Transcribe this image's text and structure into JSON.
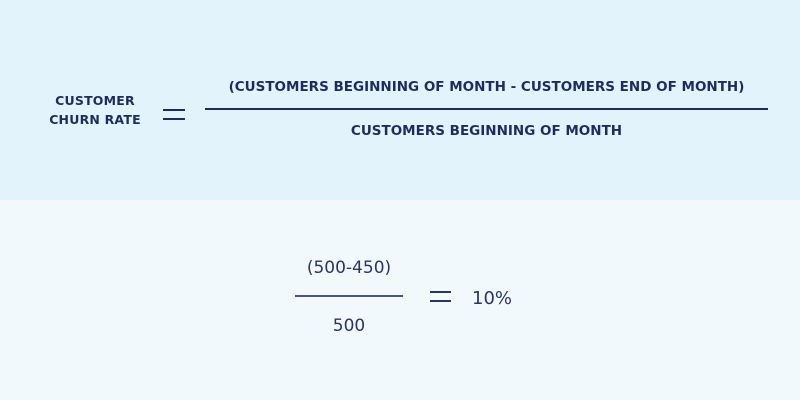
{
  "formula": {
    "label_line1": "CUSTOMER",
    "label_line2": "CHURN RATE",
    "numerator": "(CUSTOMERS BEGINNING OF MONTH - CUSTOMERS END OF MONTH)",
    "denominator": "CUSTOMERS BEGINNING OF MONTH"
  },
  "example": {
    "numerator": "(500-450)",
    "denominator": "500",
    "result": "10%"
  },
  "colors": {
    "top_background": "#e3f3fb",
    "bottom_background": "#f2f9fd",
    "text": "#1f2b5e"
  }
}
